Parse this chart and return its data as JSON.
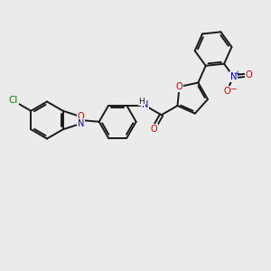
{
  "bg_color": "#ebebeb",
  "bond_color": "#1a1a1a",
  "atom_colors": {
    "C": "#1a1a1a",
    "N": "#0000cc",
    "O": "#cc0000",
    "Cl": "#008800",
    "H": "#1a1a1a"
  },
  "figsize": [
    3.0,
    3.0
  ],
  "dpi": 100,
  "lw": 1.4
}
